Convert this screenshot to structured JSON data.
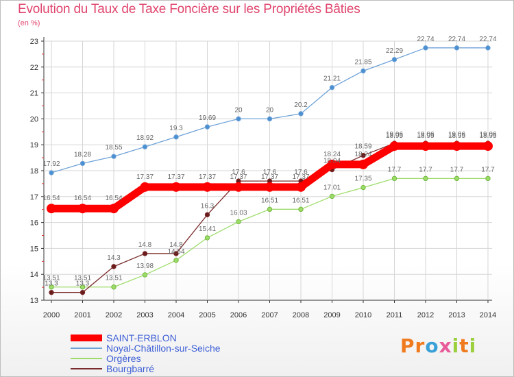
{
  "chart_data": {
    "type": "line",
    "title": "Evolution du Taux de Taxe Foncière sur les Propriétés Bâties",
    "unit_label": "(en %)",
    "x": [
      "2000",
      "2001",
      "2002",
      "2003",
      "2004",
      "2005",
      "2006",
      "2007",
      "2008",
      "2009",
      "2010",
      "2011",
      "2012",
      "2013",
      "2014"
    ],
    "ylim": [
      13,
      23
    ],
    "yticks": [
      "13",
      "14",
      "15",
      "16",
      "17",
      "18",
      "19",
      "20",
      "21",
      "22",
      "23"
    ],
    "grid": true,
    "legend_position": "bottom-left",
    "series": [
      {
        "name": "SAINT-ERBLON",
        "color": "#ff0000",
        "values": [
          16.54,
          16.54,
          16.54,
          17.37,
          17.37,
          17.37,
          17.37,
          17.37,
          17.37,
          18.24,
          18.24,
          18.95,
          18.95,
          18.95,
          18.95
        ],
        "labels": [
          "16.54",
          "16.54",
          "16.54",
          "17.37",
          "17.37",
          "17.37",
          "17.37",
          "17.37",
          "17.37",
          "18.24",
          "18.24",
          "18.95",
          "18.95",
          "18.95",
          "18.95"
        ]
      },
      {
        "name": "Noyal-Châtillon-sur-Seiche",
        "color": "#6fa3d8",
        "values": [
          17.92,
          18.28,
          18.55,
          18.92,
          19.3,
          19.69,
          20,
          20,
          20.2,
          21.21,
          21.85,
          22.29,
          22.74,
          22.74,
          22.74
        ],
        "labels": [
          "17.92",
          "18.28",
          "18.55",
          "18.92",
          "19.3",
          "19.69",
          "20",
          "20",
          "20.2",
          "21.21",
          "21.85",
          "22.29",
          "22.74",
          "22.74",
          "22.74"
        ]
      },
      {
        "name": "Orgères",
        "color": "#9edc6a",
        "values": [
          13.51,
          13.51,
          13.51,
          13.98,
          14.54,
          15.41,
          16.03,
          16.51,
          16.51,
          17.01,
          17.35,
          17.7,
          17.7,
          17.7,
          17.7
        ],
        "labels": [
          "13.51",
          "13.51",
          "13.51",
          "13.98",
          "14.54",
          "15.41",
          "16.03",
          "16.51",
          "16.51",
          "17.01",
          "17.35",
          "17.7",
          "17.7",
          "17.7",
          "17.7"
        ]
      },
      {
        "name": "Bourgbarré",
        "color": "#7a2a2a",
        "values": [
          13.3,
          13.3,
          14.3,
          14.8,
          14.8,
          16.3,
          17.6,
          17.6,
          17.6,
          18.04,
          18.59,
          19.06,
          19.06,
          19.06,
          19.06
        ],
        "labels": [
          "13.3",
          "13.3",
          "14.3",
          "14.8",
          "14.8",
          "16.3",
          "17.6",
          "17.6",
          "17.6",
          "18.04",
          "18.59",
          "19.06",
          "19.06",
          "19.06",
          "19.06"
        ]
      }
    ]
  },
  "brand": {
    "letters": [
      "P",
      "r",
      "o",
      "x",
      "i",
      "t",
      "i"
    ],
    "colors": [
      "#f07b1e",
      "#f07b1e",
      "#3aa0d8",
      "#e85a9a",
      "#9bcf3c",
      "#f07b1e",
      "#9bcf3c"
    ]
  }
}
